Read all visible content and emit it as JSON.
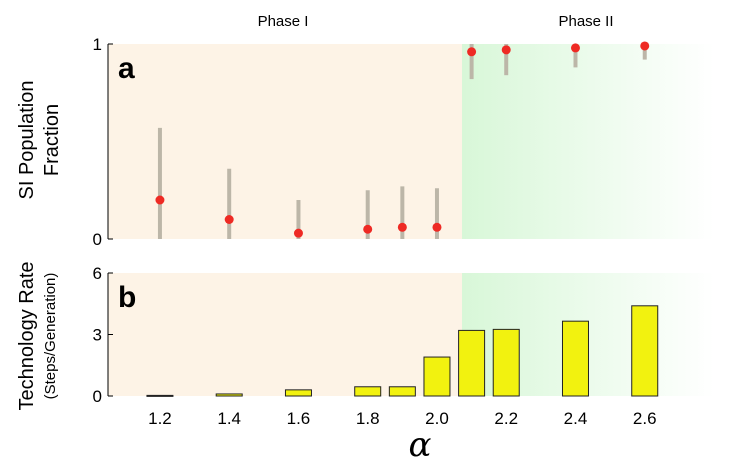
{
  "chart_data": [
    {
      "type": "scatter",
      "panel_label": "a",
      "ylabel_line1": "SI Population",
      "ylabel_line2": "Fraction",
      "xlim": [
        1.05,
        2.8
      ],
      "ylim": [
        0,
        1
      ],
      "yticks": [
        0,
        1
      ],
      "phase_boundary": 2.07,
      "phases": [
        "Phase I",
        "Phase II"
      ],
      "points": [
        {
          "x": 1.2,
          "y": 0.2,
          "low": 0.0,
          "high": 0.57
        },
        {
          "x": 1.4,
          "y": 0.1,
          "low": 0.0,
          "high": 0.36
        },
        {
          "x": 1.6,
          "y": 0.03,
          "low": 0.0,
          "high": 0.2
        },
        {
          "x": 1.8,
          "y": 0.05,
          "low": 0.0,
          "high": 0.25
        },
        {
          "x": 1.9,
          "y": 0.06,
          "low": 0.0,
          "high": 0.27
        },
        {
          "x": 2.0,
          "y": 0.06,
          "low": 0.0,
          "high": 0.26
        },
        {
          "x": 2.1,
          "y": 0.96,
          "low": 0.82,
          "high": 1.0
        },
        {
          "x": 2.2,
          "y": 0.97,
          "low": 0.84,
          "high": 1.0
        },
        {
          "x": 2.4,
          "y": 0.98,
          "low": 0.88,
          "high": 1.0
        },
        {
          "x": 2.6,
          "y": 0.99,
          "low": 0.92,
          "high": 1.0
        }
      ]
    },
    {
      "type": "bar",
      "panel_label": "b",
      "ylabel_line1": "Technology Rate",
      "ylabel_line2": "(Steps/Generation)",
      "xlabel": "α",
      "xlim": [
        1.05,
        2.8
      ],
      "ylim": [
        0,
        6
      ],
      "yticks": [
        0,
        3,
        6
      ],
      "xticks": [
        1.2,
        1.4,
        1.6,
        1.8,
        2.0,
        2.2,
        2.4,
        2.6
      ],
      "xtick_labels": [
        "1.2",
        "1.4",
        "1.6",
        "1.8",
        "2.0",
        "2.2",
        "2.4",
        "2.6"
      ],
      "bars": [
        {
          "x": 1.2,
          "value": 0.03
        },
        {
          "x": 1.4,
          "value": 0.1
        },
        {
          "x": 1.6,
          "value": 0.3
        },
        {
          "x": 1.8,
          "value": 0.45
        },
        {
          "x": 1.9,
          "value": 0.45
        },
        {
          "x": 2.0,
          "value": 1.9
        },
        {
          "x": 2.1,
          "value": 3.2
        },
        {
          "x": 2.2,
          "value": 3.25
        },
        {
          "x": 2.4,
          "value": 3.65
        },
        {
          "x": 2.6,
          "value": 4.4
        }
      ]
    }
  ],
  "colors": {
    "phase1": "#fdf3e6",
    "phase2": "#dcf8dc",
    "point": "#ee2a24",
    "errorbar": "#bcb6a8",
    "bar_fill": "#f2f20f",
    "bar_stroke": "#222222"
  }
}
